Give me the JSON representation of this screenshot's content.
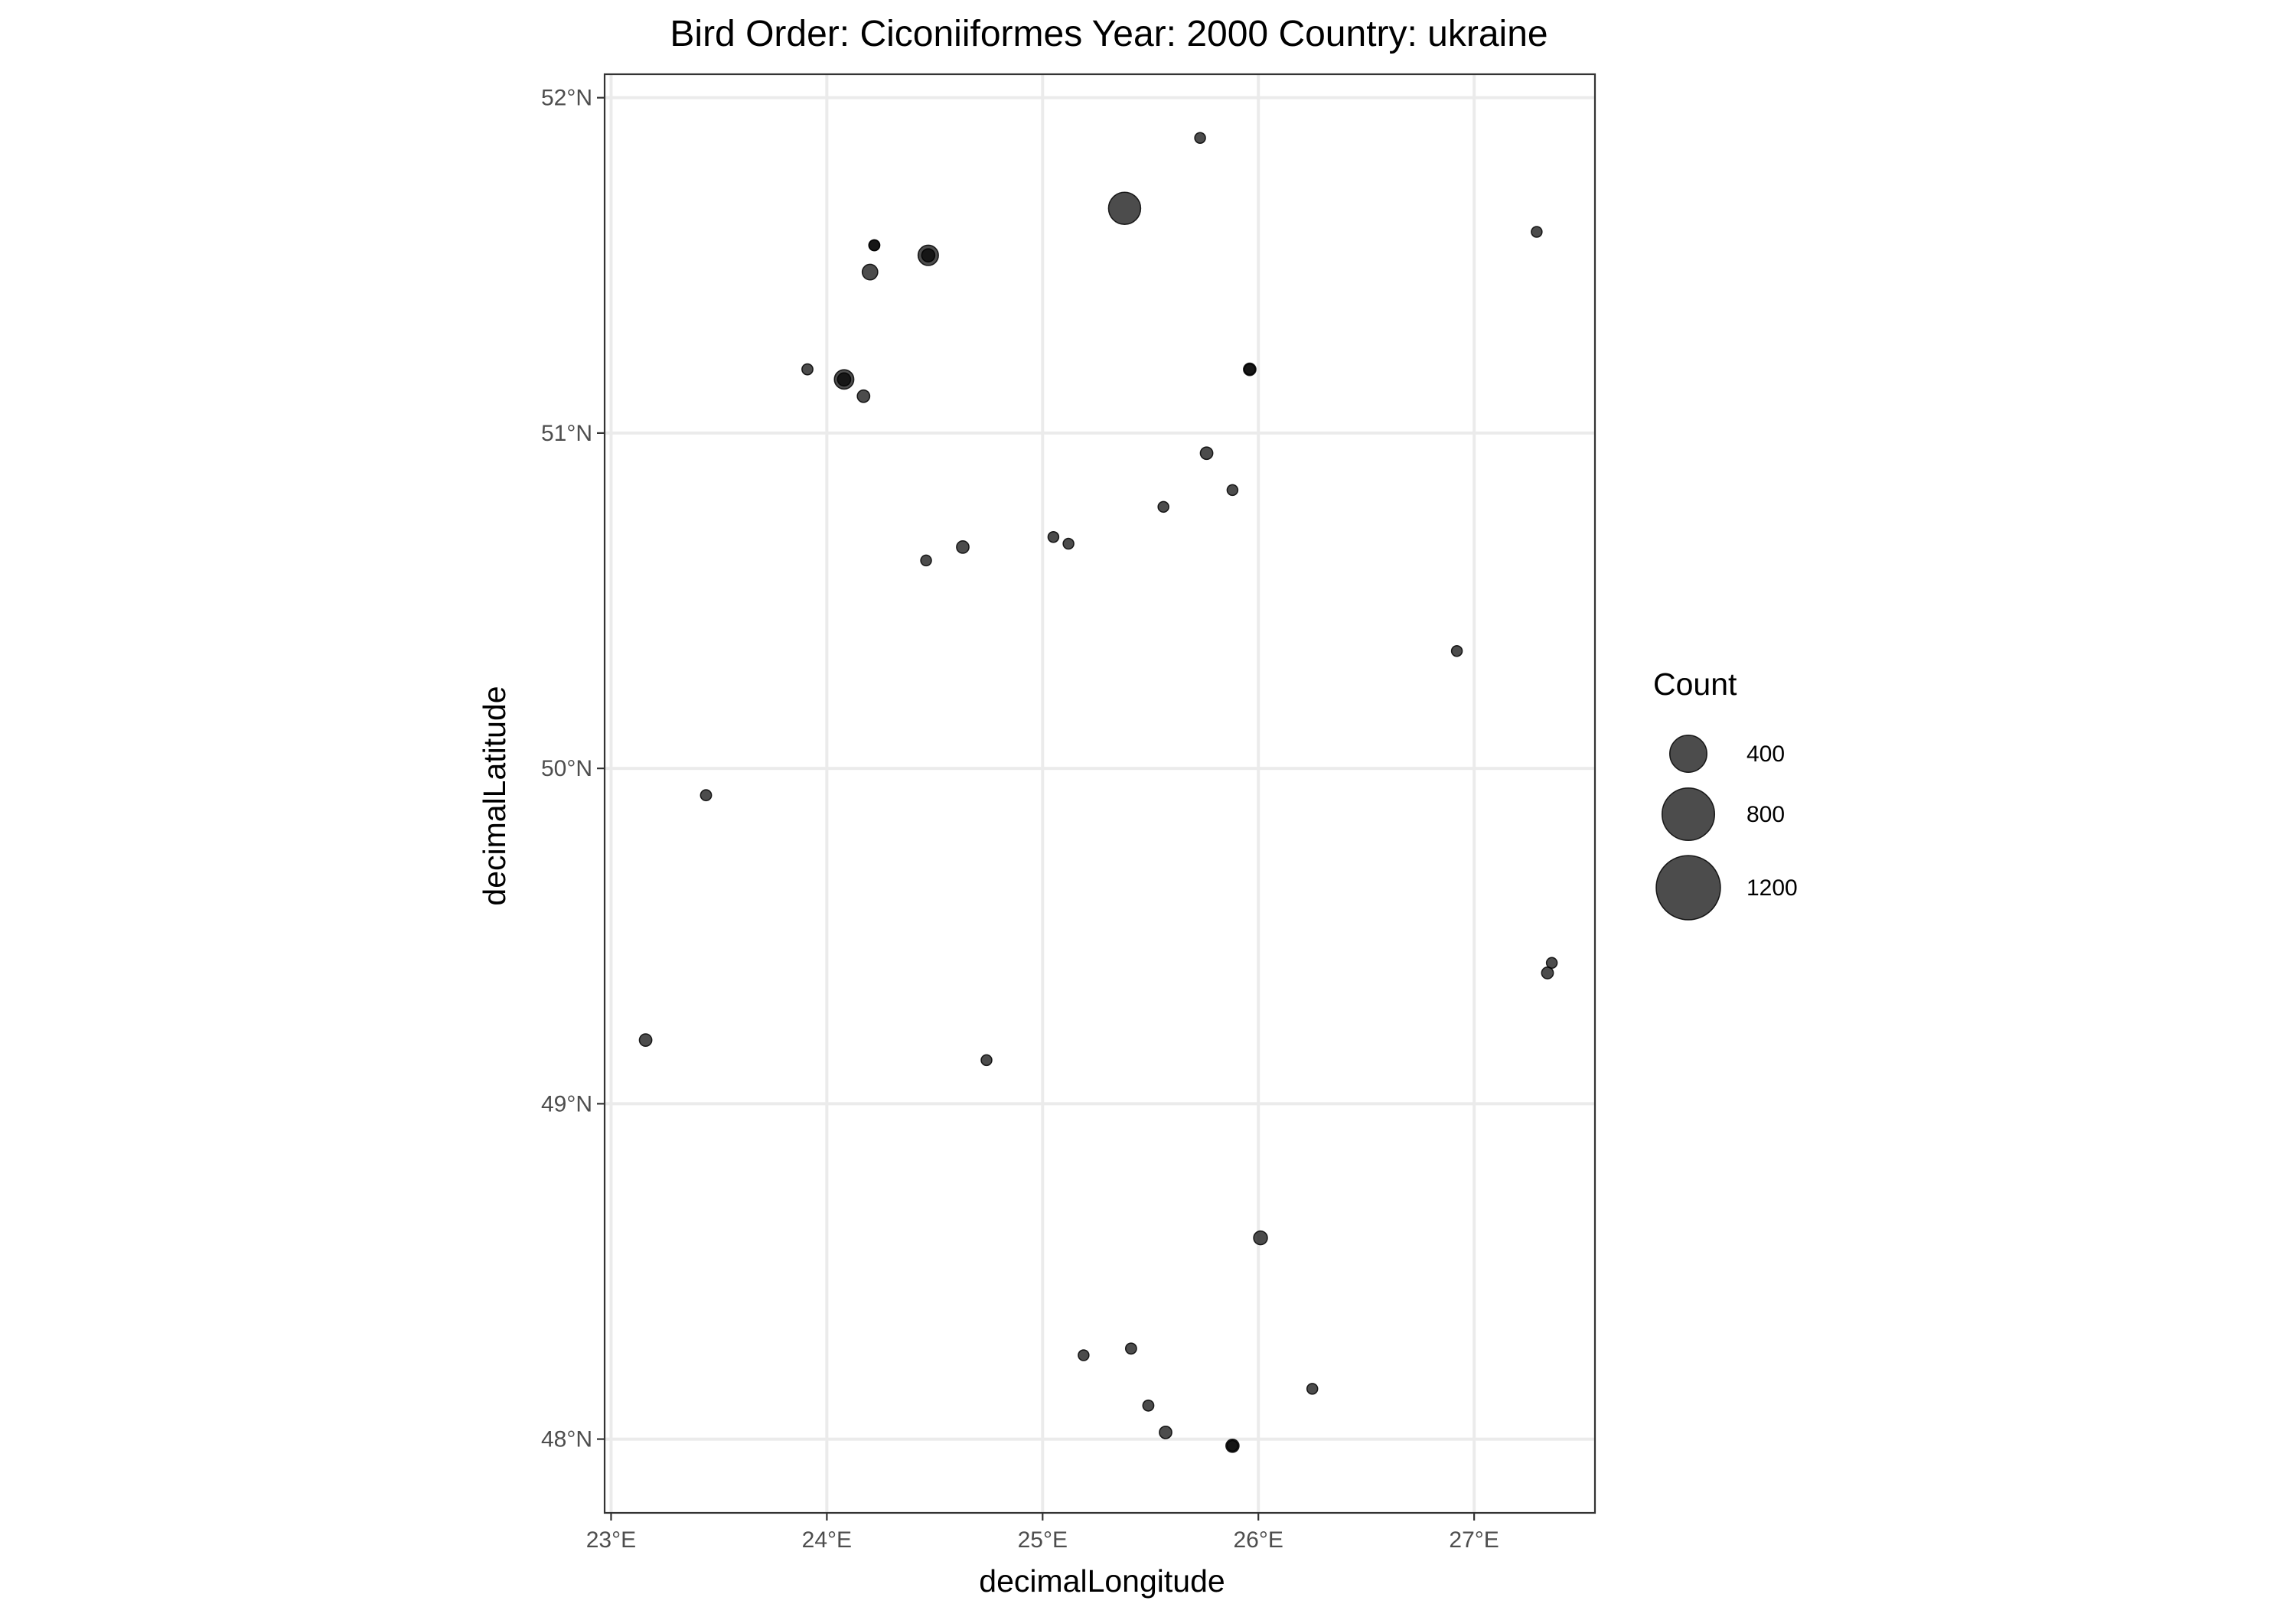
{
  "chart_data": {
    "type": "scatter",
    "title": "Bird Order: Ciconiiformes Year: 2000 Country: ukraine",
    "xlabel": "decimalLongitude",
    "ylabel": "decimalLatitude",
    "xlim": [
      22.97,
      27.56
    ],
    "ylim": [
      47.78,
      52.07
    ],
    "x_ticks": [
      23,
      24,
      25,
      26,
      27
    ],
    "x_tick_labels": [
      "23°E",
      "24°E",
      "25°E",
      "26°E",
      "27°E"
    ],
    "y_ticks": [
      48,
      49,
      50,
      51,
      52
    ],
    "y_tick_labels": [
      "48°N",
      "49°N",
      "50°N",
      "51°N",
      "52°N"
    ],
    "grid": true,
    "point_color": "#000000",
    "point_opacity": 0.7,
    "size_scale_max": 1200,
    "legend": {
      "title": "Count",
      "placement": "right",
      "entries": [
        {
          "value": 400,
          "label": "400"
        },
        {
          "value": 800,
          "label": "800"
        },
        {
          "value": 1200,
          "label": "1200"
        }
      ]
    },
    "points": [
      {
        "x": 25.73,
        "y": 51.88,
        "count": 25
      },
      {
        "x": 25.38,
        "y": 51.67,
        "count": 300
      },
      {
        "x": 27.29,
        "y": 51.6,
        "count": 22
      },
      {
        "x": 24.22,
        "y": 51.56,
        "count": 35
      },
      {
        "x": 24.22,
        "y": 51.56,
        "count": 25
      },
      {
        "x": 24.47,
        "y": 51.53,
        "count": 120
      },
      {
        "x": 24.47,
        "y": 51.53,
        "count": 50
      },
      {
        "x": 24.2,
        "y": 51.48,
        "count": 70
      },
      {
        "x": 23.91,
        "y": 51.19,
        "count": 35
      },
      {
        "x": 24.08,
        "y": 51.16,
        "count": 110
      },
      {
        "x": 24.08,
        "y": 51.16,
        "count": 50
      },
      {
        "x": 25.96,
        "y": 51.19,
        "count": 45
      },
      {
        "x": 25.96,
        "y": 51.19,
        "count": 25
      },
      {
        "x": 24.17,
        "y": 51.11,
        "count": 45
      },
      {
        "x": 25.76,
        "y": 50.94,
        "count": 45
      },
      {
        "x": 25.88,
        "y": 50.83,
        "count": 25
      },
      {
        "x": 25.56,
        "y": 50.78,
        "count": 25
      },
      {
        "x": 25.05,
        "y": 50.69,
        "count": 25
      },
      {
        "x": 25.12,
        "y": 50.67,
        "count": 22
      },
      {
        "x": 24.63,
        "y": 50.66,
        "count": 45
      },
      {
        "x": 24.46,
        "y": 50.62,
        "count": 22
      },
      {
        "x": 26.92,
        "y": 50.35,
        "count": 25
      },
      {
        "x": 23.44,
        "y": 49.92,
        "count": 35
      },
      {
        "x": 27.36,
        "y": 49.42,
        "count": 30
      },
      {
        "x": 27.34,
        "y": 49.39,
        "count": 40
      },
      {
        "x": 23.16,
        "y": 49.19,
        "count": 45
      },
      {
        "x": 24.74,
        "y": 49.13,
        "count": 22
      },
      {
        "x": 26.01,
        "y": 48.6,
        "count": 55
      },
      {
        "x": 25.41,
        "y": 48.27,
        "count": 35
      },
      {
        "x": 25.19,
        "y": 48.25,
        "count": 25
      },
      {
        "x": 26.25,
        "y": 48.15,
        "count": 22
      },
      {
        "x": 25.49,
        "y": 48.1,
        "count": 35
      },
      {
        "x": 25.57,
        "y": 48.02,
        "count": 45
      },
      {
        "x": 25.88,
        "y": 47.98,
        "count": 50
      },
      {
        "x": 25.88,
        "y": 47.98,
        "count": 30
      }
    ]
  }
}
